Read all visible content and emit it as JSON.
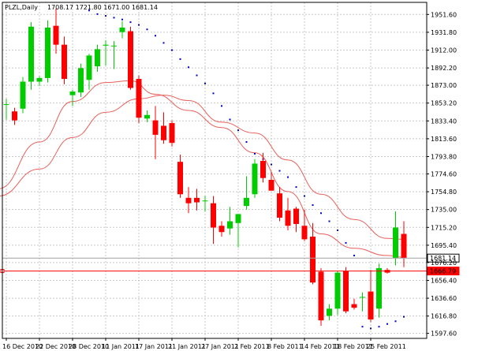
{
  "chart_data": {
    "type": "candlestick",
    "header": {
      "symbol": "PLZL,Daily",
      "ohlc_text": "1708.17 1721.80 1671.00 1681.14"
    },
    "y_ticks": [
      "1951.60",
      "1931.80",
      "1912.00",
      "1892.20",
      "1873.00",
      "1853.20",
      "1833.40",
      "1813.60",
      "1793.80",
      "1774.60",
      "1754.80",
      "1735.00",
      "1715.20",
      "1695.40",
      "1676.20",
      "1656.40",
      "1636.60",
      "1616.80",
      "1597.60"
    ],
    "y_range": [
      1592,
      1965
    ],
    "x_ticks": [
      {
        "label": "16 Dec 2010",
        "index": 0
      },
      {
        "label": "22 Dec 2010",
        "index": 4
      },
      {
        "label": "28 Dec 2010",
        "index": 8
      },
      {
        "label": "11 Jan 2011",
        "index": 12
      },
      {
        "label": "17 Jan 2011",
        "index": 16
      },
      {
        "label": "21 Jan 2011",
        "index": 20
      },
      {
        "label": "27 Jan 2011",
        "index": 24
      },
      {
        "label": "2 Feb 2011",
        "index": 28
      },
      {
        "label": "8 Feb 2011",
        "index": 32
      },
      {
        "label": "14 Feb 2011",
        "index": 36
      },
      {
        "label": "18 Feb 2011",
        "index": 40
      },
      {
        "label": "25 Feb 2011",
        "index": 44
      }
    ],
    "price_labels": [
      {
        "text": "1681.14",
        "value": 1681.14,
        "style": "gray"
      },
      {
        "text": "1666.79",
        "value": 1666.79,
        "style": "red"
      }
    ],
    "candles": [
      {
        "o": 1852,
        "h": 1858,
        "l": 1835,
        "c": 1852
      },
      {
        "o": 1844,
        "h": 1848,
        "l": 1829,
        "c": 1834
      },
      {
        "o": 1847,
        "h": 1882,
        "l": 1842,
        "c": 1877
      },
      {
        "o": 1877,
        "h": 1943,
        "l": 1868,
        "c": 1938
      },
      {
        "o": 1877,
        "h": 1883,
        "l": 1872,
        "c": 1881
      },
      {
        "o": 1881,
        "h": 1945,
        "l": 1876,
        "c": 1937
      },
      {
        "o": 1939,
        "h": 1958,
        "l": 1908,
        "c": 1918
      },
      {
        "o": 1918,
        "h": 1927,
        "l": 1874,
        "c": 1880
      },
      {
        "o": 1862,
        "h": 1868,
        "l": 1850,
        "c": 1866
      },
      {
        "o": 1865,
        "h": 1897,
        "l": 1860,
        "c": 1892
      },
      {
        "o": 1879,
        "h": 1908,
        "l": 1868,
        "c": 1906
      },
      {
        "o": 1894,
        "h": 1918,
        "l": 1888,
        "c": 1913
      },
      {
        "o": 1917,
        "h": 1923,
        "l": 1895,
        "c": 1918
      },
      {
        "o": 1917,
        "h": 1922,
        "l": 1891,
        "c": 1917
      },
      {
        "o": 1932,
        "h": 1944,
        "l": 1925,
        "c": 1937
      },
      {
        "o": 1933,
        "h": 1938,
        "l": 1868,
        "c": 1870
      },
      {
        "o": 1880,
        "h": 1884,
        "l": 1831,
        "c": 1837
      },
      {
        "o": 1836,
        "h": 1845,
        "l": 1832,
        "c": 1840
      },
      {
        "o": 1834,
        "h": 1850,
        "l": 1791,
        "c": 1818
      },
      {
        "o": 1828,
        "h": 1843,
        "l": 1808,
        "c": 1812
      },
      {
        "o": 1831,
        "h": 1834,
        "l": 1805,
        "c": 1809
      },
      {
        "o": 1788,
        "h": 1796,
        "l": 1748,
        "c": 1752
      },
      {
        "o": 1748,
        "h": 1760,
        "l": 1731,
        "c": 1742
      },
      {
        "o": 1748,
        "h": 1758,
        "l": 1734,
        "c": 1743
      },
      {
        "o": 1745,
        "h": 1750,
        "l": 1733,
        "c": 1745
      },
      {
        "o": 1742,
        "h": 1750,
        "l": 1697,
        "c": 1715
      },
      {
        "o": 1717,
        "h": 1722,
        "l": 1705,
        "c": 1710
      },
      {
        "o": 1714,
        "h": 1738,
        "l": 1707,
        "c": 1722
      },
      {
        "o": 1720,
        "h": 1727,
        "l": 1693,
        "c": 1730
      },
      {
        "o": 1739,
        "h": 1772,
        "l": 1735,
        "c": 1748
      },
      {
        "o": 1752,
        "h": 1791,
        "l": 1748,
        "c": 1786
      },
      {
        "o": 1789,
        "h": 1798,
        "l": 1765,
        "c": 1770
      },
      {
        "o": 1768,
        "h": 1777,
        "l": 1756,
        "c": 1756
      },
      {
        "o": 1753,
        "h": 1760,
        "l": 1722,
        "c": 1726
      },
      {
        "o": 1734,
        "h": 1748,
        "l": 1712,
        "c": 1717
      },
      {
        "o": 1736,
        "h": 1738,
        "l": 1710,
        "c": 1719
      },
      {
        "o": 1717,
        "h": 1735,
        "l": 1700,
        "c": 1702
      },
      {
        "o": 1705,
        "h": 1720,
        "l": 1652,
        "c": 1654
      },
      {
        "o": 1666,
        "h": 1670,
        "l": 1606,
        "c": 1612
      },
      {
        "o": 1617,
        "h": 1630,
        "l": 1612,
        "c": 1625
      },
      {
        "o": 1625,
        "h": 1667,
        "l": 1618,
        "c": 1665
      },
      {
        "o": 1667,
        "h": 1671,
        "l": 1620,
        "c": 1622
      },
      {
        "o": 1630,
        "h": 1636,
        "l": 1624,
        "c": 1626
      },
      {
        "o": 1638,
        "h": 1643,
        "l": 1622,
        "c": 1638
      },
      {
        "o": 1644,
        "h": 1668,
        "l": 1610,
        "c": 1613
      },
      {
        "o": 1625,
        "h": 1675,
        "l": 1615,
        "c": 1670
      },
      {
        "o": 1668,
        "h": 1670,
        "l": 1664,
        "c": 1665
      },
      {
        "o": 1681,
        "h": 1733,
        "l": 1673,
        "c": 1715
      },
      {
        "o": 1708,
        "h": 1722,
        "l": 1671,
        "c": 1681
      }
    ],
    "sar_dots": [
      {
        "i": 10,
        "v": 1956
      },
      {
        "i": 11,
        "v": 1952
      },
      {
        "i": 12,
        "v": 1950
      },
      {
        "i": 13,
        "v": 1948
      },
      {
        "i": 14,
        "v": 1946
      },
      {
        "i": 15,
        "v": 1943
      },
      {
        "i": 16,
        "v": 1940
      },
      {
        "i": 17,
        "v": 1935
      },
      {
        "i": 18,
        "v": 1928
      },
      {
        "i": 19,
        "v": 1920
      },
      {
        "i": 20,
        "v": 1912
      },
      {
        "i": 21,
        "v": 1902
      },
      {
        "i": 22,
        "v": 1893
      },
      {
        "i": 23,
        "v": 1884
      },
      {
        "i": 24,
        "v": 1875
      },
      {
        "i": 25,
        "v": 1864
      },
      {
        "i": 26,
        "v": 1850
      },
      {
        "i": 27,
        "v": 1835
      },
      {
        "i": 28,
        "v": 1823
      },
      {
        "i": 29,
        "v": 1810
      },
      {
        "i": 30,
        "v": 1797
      },
      {
        "i": 31,
        "v": 1791
      },
      {
        "i": 32,
        "v": 1785
      },
      {
        "i": 33,
        "v": 1778
      },
      {
        "i": 34,
        "v": 1771
      },
      {
        "i": 35,
        "v": 1760
      },
      {
        "i": 36,
        "v": 1750
      },
      {
        "i": 37,
        "v": 1740
      },
      {
        "i": 38,
        "v": 1731
      },
      {
        "i": 39,
        "v": 1722
      },
      {
        "i": 40,
        "v": 1712
      },
      {
        "i": 41,
        "v": 1698
      },
      {
        "i": 42,
        "v": 1684
      },
      {
        "i": 43,
        "v": 1605
      },
      {
        "i": 44,
        "v": 1603
      },
      {
        "i": 45,
        "v": 1605
      },
      {
        "i": 46,
        "v": 1608
      },
      {
        "i": 47,
        "v": 1611
      },
      {
        "i": 48,
        "v": 1616
      }
    ],
    "ma_fast": [
      {
        "i": -1,
        "v": 1758
      },
      {
        "i": 4,
        "v": 1810
      },
      {
        "i": 8,
        "v": 1855
      },
      {
        "i": 12,
        "v": 1876
      },
      {
        "i": 15,
        "v": 1878
      },
      {
        "i": 18,
        "v": 1863
      },
      {
        "i": 22,
        "v": 1845
      },
      {
        "i": 26,
        "v": 1826
      },
      {
        "i": 30,
        "v": 1798
      },
      {
        "i": 34,
        "v": 1755
      },
      {
        "i": 38,
        "v": 1708
      },
      {
        "i": 42,
        "v": 1692
      },
      {
        "i": 46,
        "v": 1684
      },
      {
        "i": 48,
        "v": 1682
      }
    ],
    "ma_slow": [
      {
        "i": -1,
        "v": 1750
      },
      {
        "i": 4,
        "v": 1780
      },
      {
        "i": 8,
        "v": 1815
      },
      {
        "i": 12,
        "v": 1843
      },
      {
        "i": 16,
        "v": 1858
      },
      {
        "i": 19,
        "v": 1862
      },
      {
        "i": 22,
        "v": 1856
      },
      {
        "i": 26,
        "v": 1832
      },
      {
        "i": 30,
        "v": 1820
      },
      {
        "i": 34,
        "v": 1790
      },
      {
        "i": 38,
        "v": 1752
      },
      {
        "i": 42,
        "v": 1724
      },
      {
        "i": 46,
        "v": 1703
      },
      {
        "i": 48,
        "v": 1702
      }
    ],
    "colors": {
      "bull": "#00cc00",
      "bear": "#ff0000",
      "ma": "#e8605a",
      "sar": "#0000cc",
      "grid": "#c8c8c8",
      "frame": "#000000",
      "price_line_gray": "#a0a0a0",
      "price_line_red": "#ff0000"
    }
  }
}
